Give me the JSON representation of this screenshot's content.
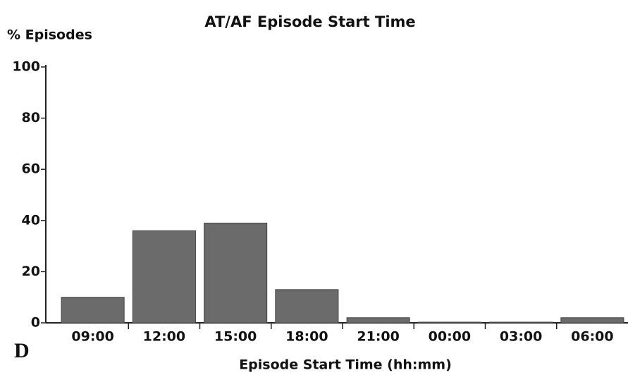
{
  "chart_data": {
    "type": "bar",
    "title": "AT/AF Episode Start Time",
    "y_label": "% Episodes",
    "x_label": "Episode Start Time (hh:mm)",
    "panel_label": "D",
    "categories": [
      "09:00",
      "12:00",
      "15:00",
      "18:00",
      "21:00",
      "00:00",
      "03:00",
      "06:00"
    ],
    "values": [
      10,
      36,
      39,
      13,
      2,
      0,
      0,
      2
    ],
    "color": "#6b6b6b",
    "ylim": [
      0,
      100
    ],
    "yticks": [
      0,
      20,
      40,
      60,
      80,
      100
    ],
    "grid": false
  }
}
